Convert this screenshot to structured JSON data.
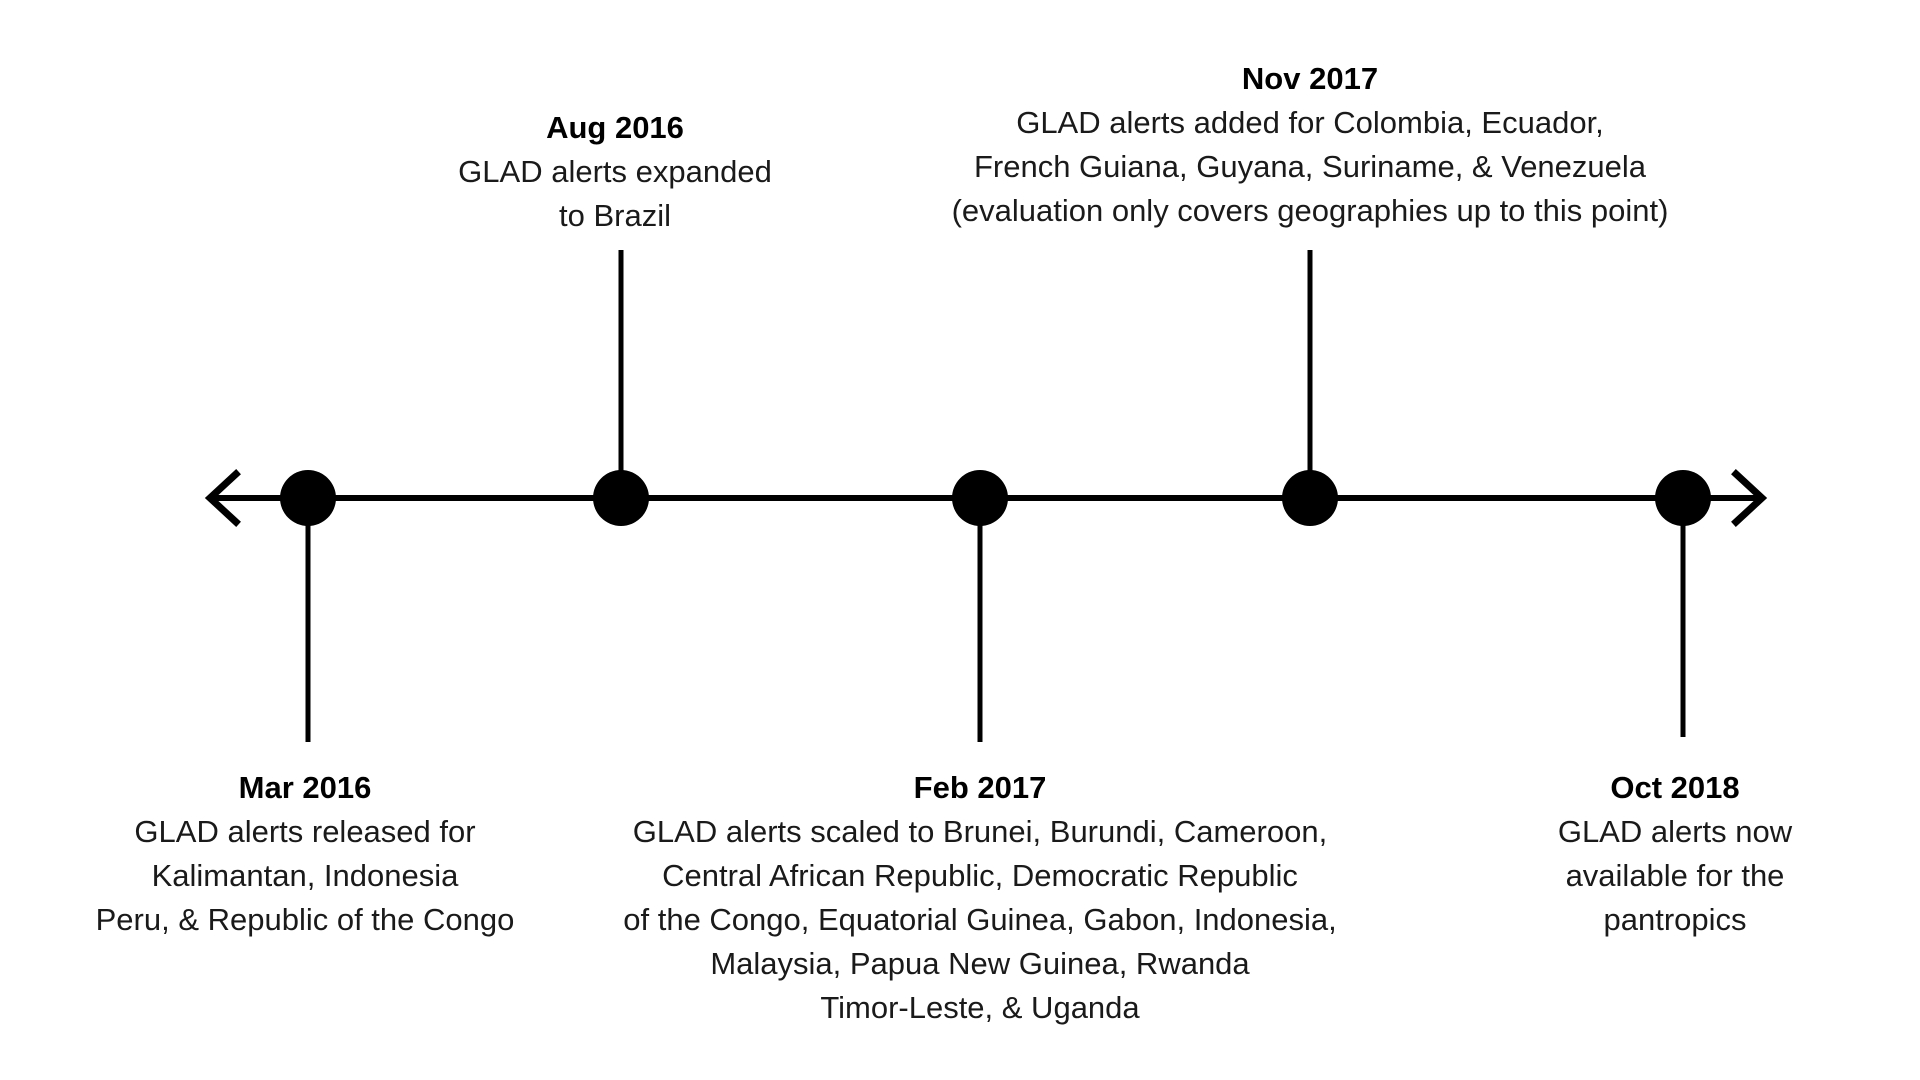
{
  "colors": {
    "line": "#000000",
    "text": "#1a1a1a"
  },
  "events": [
    {
      "id": "mar-2016",
      "date": "Mar 2016",
      "lines": [
        "GLAD alerts released for",
        "Kalimantan, Indonesia",
        "Peru, & Republic of the Congo"
      ]
    },
    {
      "id": "aug-2016",
      "date": "Aug 2016",
      "lines": [
        "GLAD alerts expanded",
        "to Brazil"
      ]
    },
    {
      "id": "feb-2017",
      "date": "Feb 2017",
      "lines": [
        "GLAD alerts scaled to Brunei, Burundi, Cameroon,",
        "Central African Republic, Democratic Republic",
        "of the Congo, Equatorial Guinea, Gabon, Indonesia,",
        "Malaysia, Papua New Guinea, Rwanda",
        "Timor-Leste, & Uganda"
      ]
    },
    {
      "id": "nov-2017",
      "date": "Nov 2017",
      "lines": [
        "GLAD alerts added for Colombia, Ecuador,",
        "French Guiana, Guyana, Suriname, & Venezuela",
        "(evaluation only covers geographies up to this point)"
      ]
    },
    {
      "id": "oct-2018",
      "date": "Oct 2018",
      "lines": [
        "GLAD alerts now",
        "available for the",
        "pantropics"
      ]
    }
  ]
}
